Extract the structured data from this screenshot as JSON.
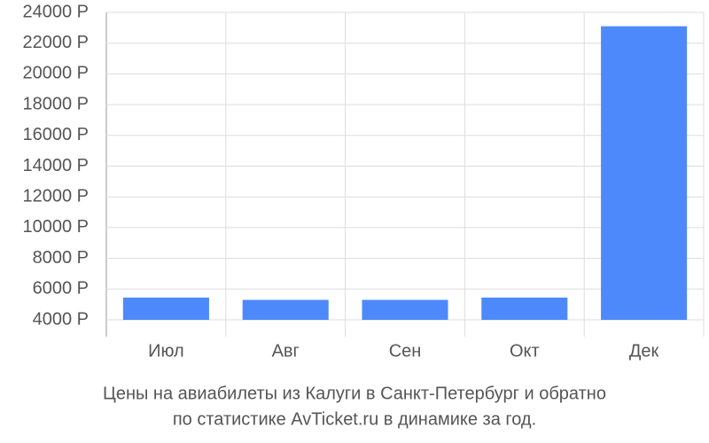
{
  "chart_data": {
    "type": "bar",
    "title": [
      "Цены на авиабилеты из Калуги в Санкт-Петербург и обратно",
      "по статистике AvTicket.ru в динамике за год."
    ],
    "categories": [
      "Июл",
      "Авг",
      "Сен",
      "Окт",
      "Дек"
    ],
    "values": [
      5450,
      5300,
      5300,
      5450,
      23100
    ],
    "color": "#4e89fb",
    "ylim": [
      4000,
      24000
    ],
    "yticks": [
      {
        "value": 4000,
        "label": "4000 Р"
      },
      {
        "value": 6000,
        "label": "6000 Р"
      },
      {
        "value": 8000,
        "label": "8000 Р"
      },
      {
        "value": 10000,
        "label": "10000 Р"
      },
      {
        "value": 12000,
        "label": "12000 Р"
      },
      {
        "value": 14000,
        "label": "14000 Р"
      },
      {
        "value": 16000,
        "label": "16000 Р"
      },
      {
        "value": 18000,
        "label": "18000 Р"
      },
      {
        "value": 20000,
        "label": "20000 Р"
      },
      {
        "value": 22000,
        "label": "22000 Р"
      },
      {
        "value": 24000,
        "label": "24000 Р"
      }
    ],
    "grid": true
  }
}
